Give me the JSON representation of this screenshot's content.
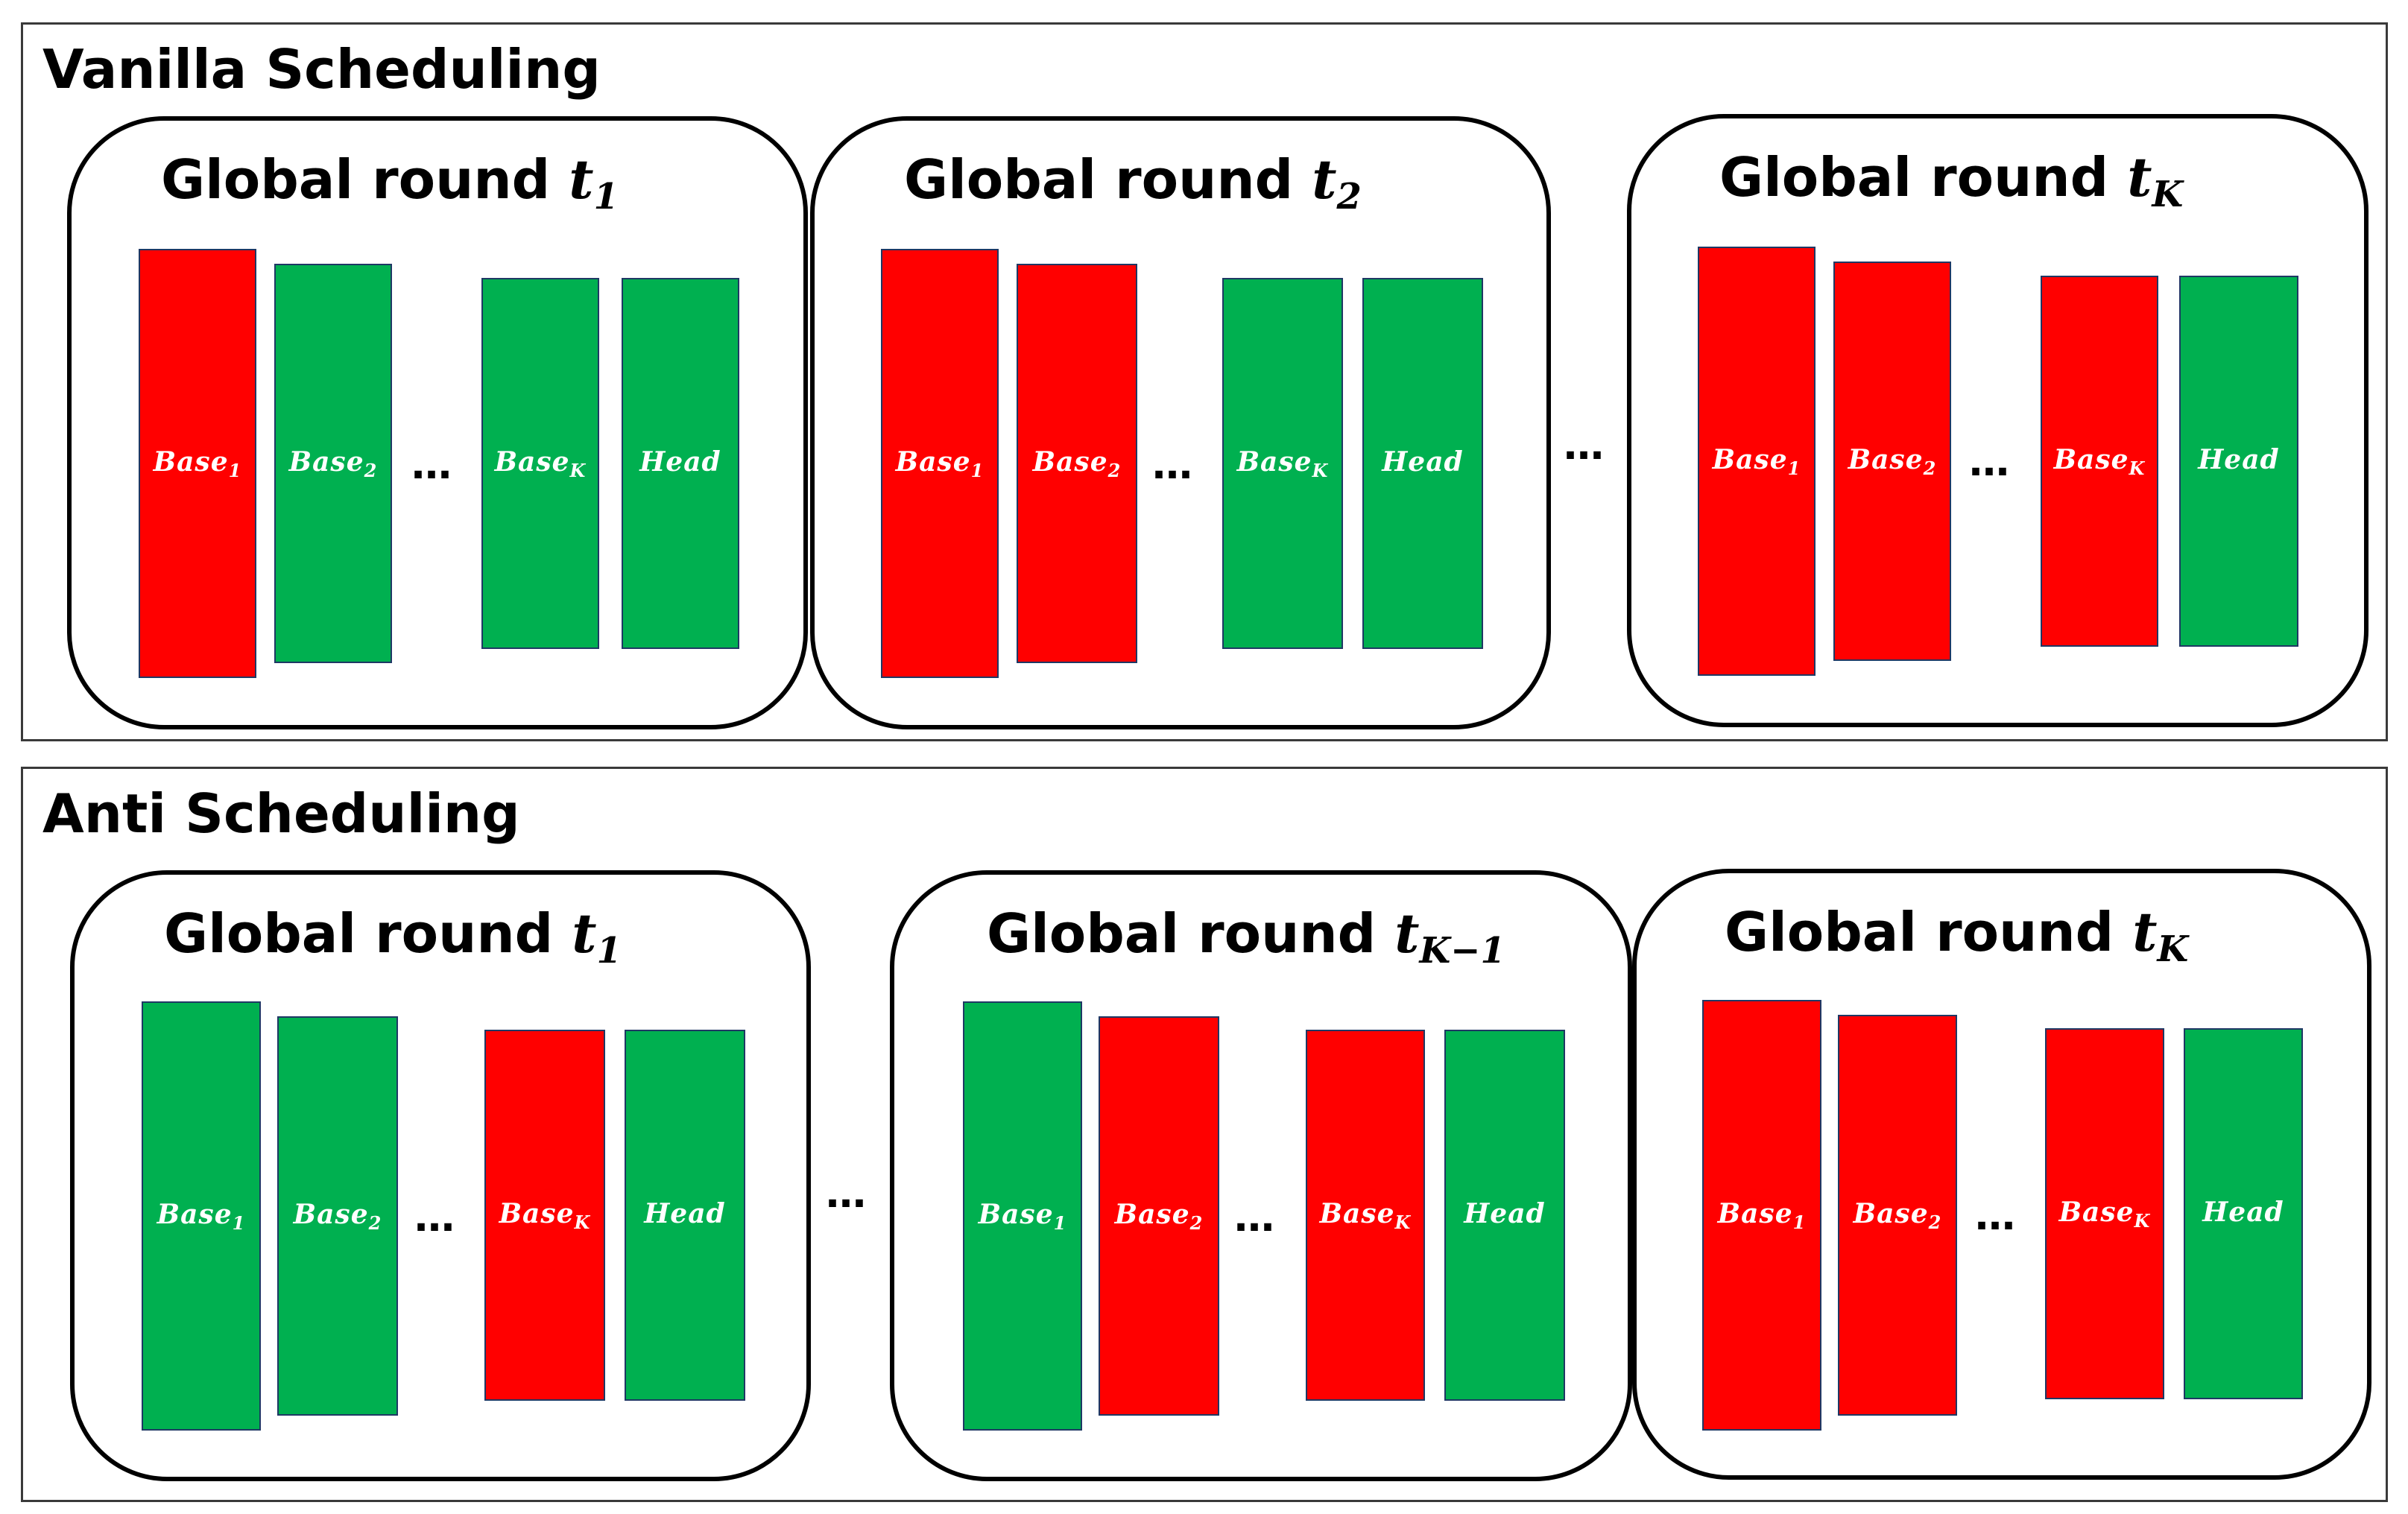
{
  "colors": {
    "red": "#ff0000",
    "green": "#00b050",
    "frame": "#000000"
  },
  "ellipsis": "…",
  "panels": [
    {
      "title": "Vanilla Scheduling",
      "rounds": [
        {
          "label": "Global round",
          "var": "t",
          "sub": "1",
          "blocks": [
            {
              "name": "Base",
              "sub": "1",
              "color": "red"
            },
            {
              "name": "Base",
              "sub": "2",
              "color": "green"
            },
            {
              "name": "Base",
              "sub": "K",
              "color": "green"
            },
            {
              "name": "Head",
              "sub": "",
              "color": "green"
            }
          ]
        },
        {
          "label": "Global round",
          "var": "t",
          "sub": "2",
          "blocks": [
            {
              "name": "Base",
              "sub": "1",
              "color": "red"
            },
            {
              "name": "Base",
              "sub": "2",
              "color": "red"
            },
            {
              "name": "Base",
              "sub": "K",
              "color": "green"
            },
            {
              "name": "Head",
              "sub": "",
              "color": "green"
            }
          ]
        },
        {
          "label": "Global round",
          "var": "t",
          "sub": "K",
          "blocks": [
            {
              "name": "Base",
              "sub": "1",
              "color": "red"
            },
            {
              "name": "Base",
              "sub": "2",
              "color": "red"
            },
            {
              "name": "Base",
              "sub": "K",
              "color": "red"
            },
            {
              "name": "Head",
              "sub": "",
              "color": "green"
            }
          ]
        }
      ]
    },
    {
      "title": "Anti Scheduling",
      "rounds": [
        {
          "label": "Global round",
          "var": "t",
          "sub": "1",
          "blocks": [
            {
              "name": "Base",
              "sub": "1",
              "color": "green"
            },
            {
              "name": "Base",
              "sub": "2",
              "color": "green"
            },
            {
              "name": "Base",
              "sub": "K",
              "color": "red"
            },
            {
              "name": "Head",
              "sub": "",
              "color": "green"
            }
          ]
        },
        {
          "label": "Global round",
          "var": "t",
          "sub": "K−1",
          "blocks": [
            {
              "name": "Base",
              "sub": "1",
              "color": "green"
            },
            {
              "name": "Base",
              "sub": "2",
              "color": "red"
            },
            {
              "name": "Base",
              "sub": "K",
              "color": "red"
            },
            {
              "name": "Head",
              "sub": "",
              "color": "green"
            }
          ]
        },
        {
          "label": "Global round",
          "var": "t",
          "sub": "K",
          "blocks": [
            {
              "name": "Base",
              "sub": "1",
              "color": "red"
            },
            {
              "name": "Base",
              "sub": "2",
              "color": "red"
            },
            {
              "name": "Base",
              "sub": "K",
              "color": "red"
            },
            {
              "name": "Head",
              "sub": "",
              "color": "green"
            }
          ]
        }
      ]
    }
  ]
}
